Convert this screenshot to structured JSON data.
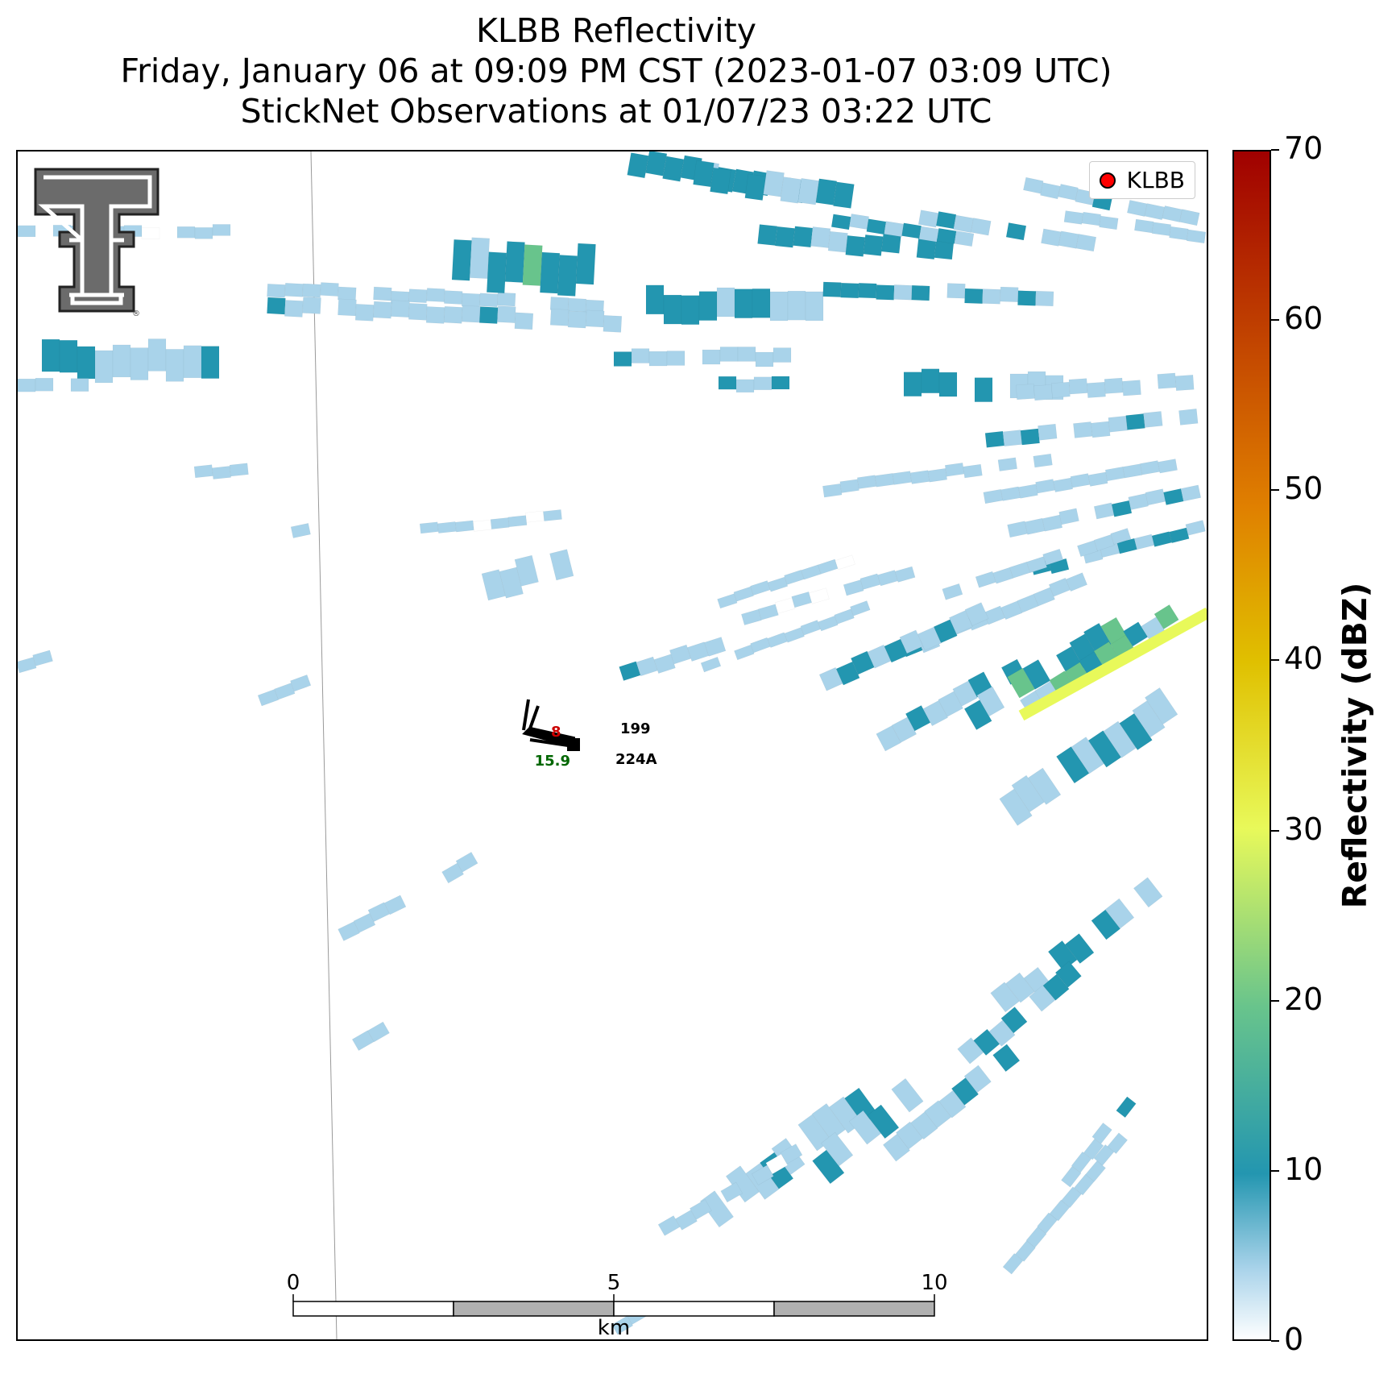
{
  "title": {
    "line1": "KLBB Reflectivity",
    "line2": "Friday, January 06 at 09:09 PM CST (2023-01-07 03:09 UTC)",
    "line3": "StickNet Observations at 01/07/23 03:22 UTC"
  },
  "legend": {
    "label": "KLBB",
    "marker_color": "#ff0000"
  },
  "station": {
    "temperature": "8",
    "temperature_color": "#cc0000",
    "dewpoint": "15.9",
    "dewpoint_color": "#006600",
    "pressure_code": "199",
    "station_id": "224A"
  },
  "scalebar": {
    "ticks": [
      "0",
      "5",
      "10"
    ],
    "unit": "km"
  },
  "colorbar": {
    "label": "Reflectivity (dBZ)",
    "min": 0,
    "max": 70,
    "ticks": [
      "0",
      "10",
      "20",
      "30",
      "40",
      "50",
      "60",
      "70"
    ],
    "colors": [
      "#ffffff",
      "#a9d3ea",
      "#2396b0",
      "#68c48c",
      "#e8f95a",
      "#e0c000",
      "#e08000",
      "#c04000",
      "#a00000"
    ]
  },
  "logo": {
    "name": "Texas Tech Double T",
    "icon": "double-t-logo"
  }
}
